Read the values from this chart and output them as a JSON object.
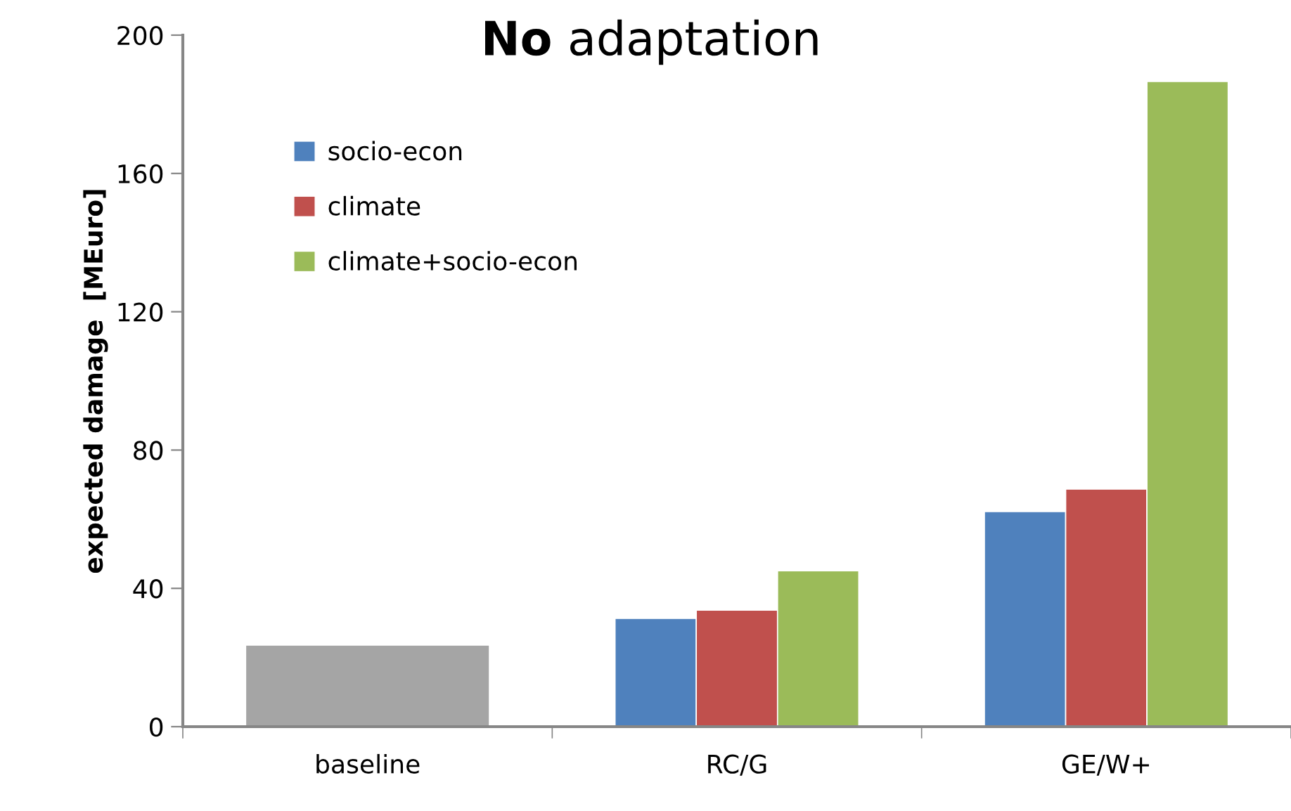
{
  "chart_data": {
    "type": "bar",
    "title": "No adaptation",
    "ylabel": "expected damage  [MEuro]",
    "categories": [
      "baseline",
      "RC/G",
      "GE/W+"
    ],
    "series": [
      {
        "color": "#a5a5a5",
        "values": [
          23.6,
          null,
          null
        ]
      },
      {
        "name": "socio-econ",
        "color": "#4f81bd",
        "values": [
          null,
          31.3,
          62.2
        ]
      },
      {
        "name": "climate",
        "color": "#c0504d",
        "values": [
          null,
          33.7,
          68.7
        ]
      },
      {
        "name": "climate+socio-econ",
        "color": "#9bbb59",
        "values": [
          null,
          45.1,
          186.6
        ]
      }
    ],
    "ylim": [
      0,
      200
    ],
    "yticks": [
      0,
      40,
      80,
      120,
      160,
      200
    ],
    "grid": false,
    "legend": "top left"
  }
}
